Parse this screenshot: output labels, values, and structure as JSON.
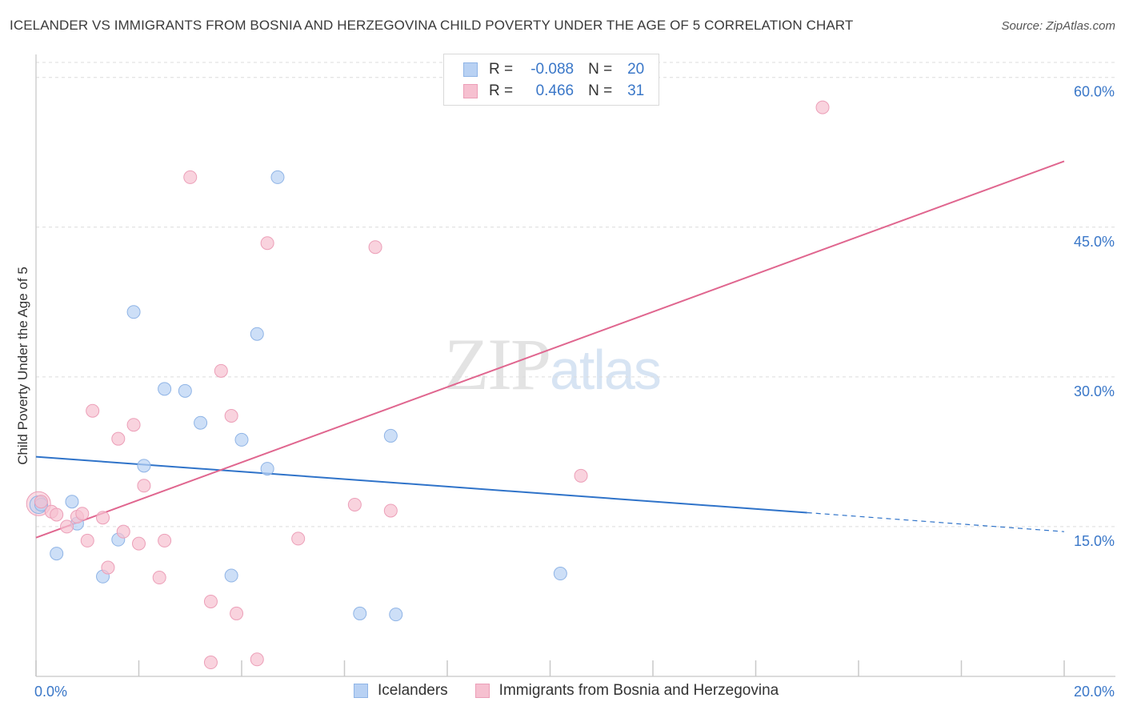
{
  "header": {
    "title": "ICELANDER VS IMMIGRANTS FROM BOSNIA AND HERZEGOVINA CHILD POVERTY UNDER THE AGE OF 5 CORRELATION CHART",
    "source": "Source: ZipAtlas.com"
  },
  "watermark": {
    "zip": "ZIP",
    "atlas": "atlas"
  },
  "legend": {
    "rows": [
      {
        "r_label": "R =",
        "r_value": "-0.088",
        "n_label": "N =",
        "n_value": "20"
      },
      {
        "r_label": "R =",
        "r_value": "0.466",
        "n_label": "N =",
        "n_value": "31"
      }
    ]
  },
  "bottom_legend": {
    "series_1": "Icelanders",
    "series_2": "Immigrants from Bosnia and Herzegovina"
  },
  "colors": {
    "blue_fill": "#b8d1f3",
    "blue_stroke": "#8fb4e6",
    "blue_line": "#2f73c9",
    "pink_fill": "#f6c0d0",
    "pink_stroke": "#ec9fb8",
    "pink_line": "#e0668f",
    "tick_text": "#3a77c8",
    "grid": "#dcdcdc"
  },
  "chart_data": {
    "type": "scatter",
    "title": "ICELANDER VS IMMIGRANTS FROM BOSNIA AND HERZEGOVINA CHILD POVERTY UNDER THE AGE OF 5 CORRELATION CHART",
    "xlabel": "",
    "ylabel": "Child Poverty Under the Age of 5",
    "xlim": [
      0,
      20
    ],
    "ylim": [
      0,
      61.5
    ],
    "x_tick_labels": [
      "0.0%",
      "20.0%"
    ],
    "y_ticks": [
      15,
      30,
      45,
      60
    ],
    "y_tick_labels": [
      "15.0%",
      "30.0%",
      "45.0%",
      "60.0%"
    ],
    "series": [
      {
        "name": "Icelanders",
        "points": [
          [
            0.1,
            17.2
          ],
          [
            0.4,
            12.3
          ],
          [
            0.7,
            17.5
          ],
          [
            0.8,
            15.3
          ],
          [
            1.3,
            10.0
          ],
          [
            1.6,
            13.7
          ],
          [
            1.9,
            36.5
          ],
          [
            2.1,
            21.1
          ],
          [
            2.5,
            28.8
          ],
          [
            2.9,
            28.6
          ],
          [
            3.2,
            25.4
          ],
          [
            3.8,
            10.1
          ],
          [
            4.0,
            23.7
          ],
          [
            4.3,
            34.3
          ],
          [
            4.5,
            20.8
          ],
          [
            4.7,
            50.0
          ],
          [
            6.3,
            6.3
          ],
          [
            6.9,
            24.1
          ],
          [
            7.0,
            6.2
          ],
          [
            10.2,
            10.3
          ]
        ],
        "trend": {
          "x0": 0,
          "y0": 22.0,
          "x1": 15.0,
          "y1": 16.4,
          "dash_to_x": 20,
          "dash_to_y": 14.5
        }
      },
      {
        "name": "Immigrants from Bosnia and Herzegovina",
        "points": [
          [
            0.1,
            17.5
          ],
          [
            0.3,
            16.5
          ],
          [
            0.4,
            16.2
          ],
          [
            0.6,
            15.0
          ],
          [
            0.8,
            16.0
          ],
          [
            0.9,
            16.3
          ],
          [
            1.0,
            13.6
          ],
          [
            1.1,
            26.6
          ],
          [
            1.3,
            15.9
          ],
          [
            1.4,
            10.9
          ],
          [
            1.6,
            23.8
          ],
          [
            1.7,
            14.5
          ],
          [
            1.9,
            25.2
          ],
          [
            2.0,
            13.3
          ],
          [
            2.1,
            19.1
          ],
          [
            2.4,
            9.9
          ],
          [
            2.5,
            13.6
          ],
          [
            3.0,
            50.0
          ],
          [
            3.4,
            1.4
          ],
          [
            3.4,
            7.5
          ],
          [
            3.6,
            30.6
          ],
          [
            3.8,
            26.1
          ],
          [
            3.9,
            6.3
          ],
          [
            4.3,
            1.7
          ],
          [
            4.5,
            43.4
          ],
          [
            5.1,
            13.8
          ],
          [
            6.2,
            17.2
          ],
          [
            6.6,
            43.0
          ],
          [
            6.9,
            16.6
          ],
          [
            10.6,
            20.1
          ],
          [
            15.3,
            57.0
          ]
        ],
        "trend": {
          "x0": 0,
          "y0": 13.9,
          "x1": 20,
          "y1": 51.6
        }
      }
    ]
  }
}
